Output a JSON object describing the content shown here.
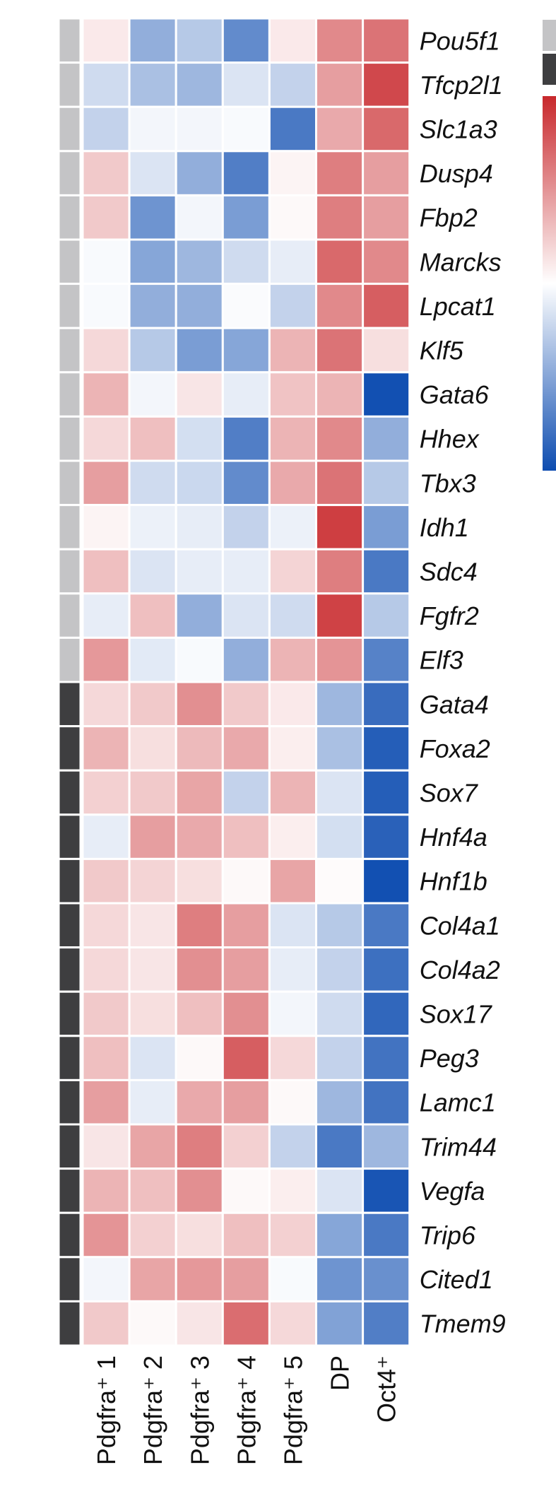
{
  "chart_data": {
    "type": "heatmap",
    "title": "",
    "xlabel": "",
    "ylabel": "",
    "columns": [
      "Pdgfra⁺ 1",
      "Pdgfra⁺ 2",
      "Pdgfra⁺ 3",
      "Pdgfra⁺ 4",
      "Pdgfra⁺ 5",
      "DP",
      "Oct4⁺"
    ],
    "rows": [
      "Pou5f1",
      "Tfcp2l1",
      "Slc1a3",
      "Dusp4",
      "Fbp2",
      "Marcks",
      "Lpcat1",
      "Klf5",
      "Gata6",
      "Hhex",
      "Tbx3",
      "Idh1",
      "Sdc4",
      "Fgfr2",
      "Elf3",
      "Gata4",
      "Foxa2",
      "Sox7",
      "Hnf4a",
      "Hnf1b",
      "Col4a1",
      "Col4a2",
      "Sox17",
      "Peg3",
      "Lamc1",
      "Trim44",
      "Vegfa",
      "Trip6",
      "Cited1",
      "Tmem9"
    ],
    "row_groups": [
      {
        "rows": 15,
        "color": "#c4c4c6"
      },
      {
        "rows": 15,
        "color": "#3e3e40"
      }
    ],
    "colormap": {
      "low": "#0d4cb0",
      "mid": "#ffffff",
      "high": "#c8282c",
      "range": [
        -1,
        1
      ]
    },
    "values": [
      [
        0.1,
        -0.45,
        -0.3,
        -0.65,
        0.1,
        0.55,
        0.65
      ],
      [
        -0.2,
        -0.35,
        -0.4,
        -0.15,
        -0.25,
        0.45,
        0.85
      ],
      [
        -0.25,
        -0.05,
        -0.05,
        -0.03,
        -0.75,
        0.4,
        0.7
      ],
      [
        0.25,
        -0.15,
        -0.45,
        -0.72,
        0.05,
        0.6,
        0.45
      ],
      [
        0.25,
        -0.6,
        -0.05,
        -0.55,
        0.03,
        0.6,
        0.45
      ],
      [
        -0.03,
        -0.5,
        -0.4,
        -0.2,
        -0.1,
        0.7,
        0.55
      ],
      [
        -0.03,
        -0.45,
        -0.45,
        -0.02,
        -0.25,
        0.55,
        0.75
      ],
      [
        0.18,
        -0.3,
        -0.55,
        -0.5,
        0.35,
        0.65,
        0.15
      ],
      [
        0.35,
        -0.05,
        0.12,
        -0.1,
        0.28,
        0.35,
        -0.98
      ],
      [
        0.18,
        0.3,
        -0.18,
        -0.72,
        0.35,
        0.55,
        -0.45
      ],
      [
        0.45,
        -0.2,
        -0.22,
        -0.65,
        0.4,
        0.65,
        -0.3
      ],
      [
        0.05,
        -0.08,
        -0.1,
        -0.25,
        -0.08,
        0.9,
        -0.55
      ],
      [
        0.3,
        -0.15,
        -0.1,
        -0.1,
        0.2,
        0.6,
        -0.75
      ],
      [
        -0.1,
        0.3,
        -0.45,
        -0.15,
        -0.2,
        0.88,
        -0.3
      ],
      [
        0.48,
        -0.12,
        -0.03,
        -0.45,
        0.35,
        0.5,
        -0.7
      ],
      [
        0.18,
        0.25,
        0.52,
        0.25,
        0.1,
        -0.4,
        -0.82
      ],
      [
        0.35,
        0.15,
        0.32,
        0.4,
        0.08,
        -0.35,
        -0.9
      ],
      [
        0.22,
        0.25,
        0.42,
        -0.25,
        0.35,
        -0.15,
        -0.9
      ],
      [
        -0.1,
        0.45,
        0.4,
        0.3,
        0.08,
        -0.18,
        -0.88
      ],
      [
        0.25,
        0.2,
        0.15,
        0.03,
        0.42,
        0.02,
        -0.98
      ],
      [
        0.18,
        0.12,
        0.6,
        0.45,
        -0.15,
        -0.3,
        -0.75
      ],
      [
        0.18,
        0.12,
        0.52,
        0.45,
        -0.1,
        -0.25,
        -0.8
      ],
      [
        0.25,
        0.15,
        0.3,
        0.52,
        -0.05,
        -0.2,
        -0.85
      ],
      [
        0.3,
        -0.15,
        0.03,
        0.75,
        0.18,
        -0.25,
        -0.78
      ],
      [
        0.45,
        -0.1,
        0.4,
        0.45,
        0.03,
        -0.4,
        -0.78
      ],
      [
        0.12,
        0.42,
        0.6,
        0.22,
        -0.25,
        -0.75,
        -0.4
      ],
      [
        0.35,
        0.3,
        0.52,
        0.03,
        0.08,
        -0.15,
        -0.95
      ],
      [
        0.5,
        0.22,
        0.15,
        0.3,
        0.22,
        -0.5,
        -0.75
      ],
      [
        -0.05,
        0.42,
        0.48,
        0.45,
        -0.03,
        -0.6,
        -0.62
      ],
      [
        0.25,
        0.03,
        0.12,
        0.68,
        0.18,
        -0.52,
        -0.72
      ]
    ]
  },
  "legend": {
    "group_swatches": [
      "#c4c4c6",
      "#3e3e40"
    ]
  }
}
